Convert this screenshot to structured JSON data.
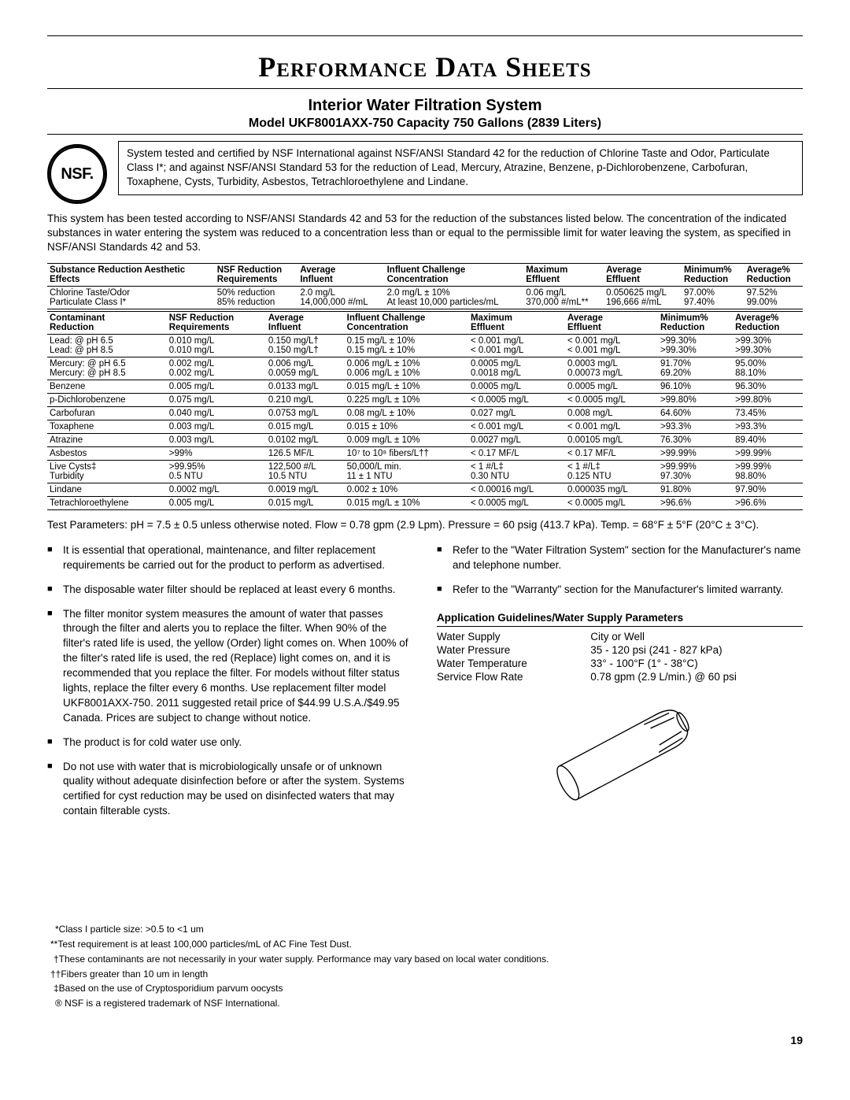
{
  "title": "Performance Data Sheets",
  "subtitle": "Interior Water Filtration System",
  "model_line": "Model UKF8001AXX-750 Capacity 750 Gallons (2839 Liters)",
  "nsf_badge": "NSF.",
  "cert_box": "System tested and certified by NSF International against NSF/ANSI Standard 42 for the reduction of Chlorine Taste and Odor, Particulate Class I*; and against NSF/ANSI Standard 53 for the reduction of Lead, Mercury, Atrazine, Benzene, p-Dichlorobenzene, Carbofuran, Toxaphene, Cysts, Turbidity, Asbestos, Tetrachloroethylene and Lindane.",
  "intro_para": "This system has been tested according to NSF/ANSI Standards 42 and 53 for the reduction of the substances listed below. The concentration of the indicated substances in water entering the system was reduced to a concentration less than or equal to the permissible limit for water leaving the system, as specified in NSF/ANSI Standards 42 and 53.",
  "table1": {
    "headers": [
      "Substance Reduction Aesthetic Effects",
      "NSF Reduction Requirements",
      "Average Influent",
      "Influent Challenge Concentration",
      "Maximum Effluent",
      "Average Effluent",
      "Minimum% Reduction",
      "Average% Reduction"
    ],
    "rows": [
      [
        "Chlorine Taste/Odor\nParticulate Class I*",
        "50% reduction\n85% reduction",
        "2.0 mg/L\n14,000,000 #/mL",
        "2.0 mg/L ± 10%\nAt least 10,000 particles/mL",
        "0.06 mg/L\n370,000 #/mL**",
        "0.050625 mg/L\n196,666 #/mL",
        "97.00%\n97.40%",
        "97.52%\n99.00%"
      ]
    ]
  },
  "table2": {
    "headers": [
      "Contaminant Reduction",
      "NSF Reduction Requirements",
      "Average Influent",
      "Influent Challenge Concentration",
      "Maximum Effluent",
      "Average Effluent",
      "Minimum% Reduction",
      "Average% Reduction"
    ],
    "rows": [
      [
        "Lead: @ pH 6.5\nLead: @ pH 8.5",
        "0.010 mg/L\n0.010 mg/L",
        "0.150 mg/L†\n0.150 mg/L†",
        "0.15 mg/L ± 10%\n0.15 mg/L ± 10%",
        "< 0.001 mg/L\n< 0.001 mg/L",
        "< 0.001 mg/L\n< 0.001 mg/L",
        ">99.30%\n>99.30%",
        ">99.30%\n>99.30%"
      ],
      [
        "Mercury: @ pH 6.5\nMercury: @ pH 8.5",
        "0.002 mg/L\n0.002 mg/L",
        "0.006 mg/L\n0.0059 mg/L",
        "0.006 mg/L ± 10%\n0.006 mg/L ± 10%",
        "0.0005 mg/L\n0.0018 mg/L",
        "0.0003 mg/L\n0.00073 mg/L",
        "91.70%\n69.20%",
        "95.00%\n88.10%"
      ],
      [
        "Benzene",
        "0.005 mg/L",
        "0.0133 mg/L",
        "0.015 mg/L ± 10%",
        "0.0005 mg/L",
        "0.0005 mg/L",
        "96.10%",
        "96.30%"
      ],
      [
        "p-Dichlorobenzene",
        "0.075 mg/L",
        "0.210 mg/L",
        "0.225 mg/L ± 10%",
        "< 0.0005 mg/L",
        "< 0.0005 mg/L",
        ">99.80%",
        ">99.80%"
      ],
      [
        "Carbofuran",
        "0.040 mg/L",
        "0.0753 mg/L",
        "0.08 mg/L ± 10%",
        "0.027 mg/L",
        "0.008 mg/L",
        "64.60%",
        "73.45%"
      ],
      [
        "Toxaphene",
        "0.003 mg/L",
        "0.015 mg/L",
        "0.015 ± 10%",
        "< 0.001 mg/L",
        "< 0.001 mg/L",
        ">93.3%",
        ">93.3%"
      ],
      [
        "Atrazine",
        "0.003 mg/L",
        "0.0102 mg/L",
        "0.009 mg/L ± 10%",
        "0.0027 mg/L",
        "0.00105 mg/L",
        "76.30%",
        "89.40%"
      ],
      [
        "Asbestos",
        ">99%",
        "126.5 MF/L",
        "10⁷ to 10⁸ fibers/L††",
        "< 0.17 MF/L",
        "< 0.17 MF/L",
        ">99.99%",
        ">99.99%"
      ],
      [
        "Live Cysts‡\nTurbidity",
        ">99.95%\n0.5 NTU",
        "122,500 #/L\n10.5 NTU",
        "50,000/L min.\n11 ± 1 NTU",
        "< 1 #/L‡\n0.30 NTU",
        "< 1 #/L‡\n0.125 NTU",
        ">99.99%\n97.30%",
        ">99.99%\n98.80%"
      ],
      [
        "Lindane",
        "0.0002 mg/L",
        "0.0019 mg/L",
        "0.002 ± 10%",
        "< 0.00016 mg/L",
        "0.000035 mg/L",
        "91.80%",
        "97.90%"
      ],
      [
        "Tetrachloroethylene",
        "0.005 mg/L",
        "0.015 mg/L",
        "0.015 mg/L ± 10%",
        "< 0.0005 mg/L",
        "< 0.0005 mg/L",
        ">96.6%",
        ">96.6%"
      ]
    ]
  },
  "test_params": "Test Parameters: pH = 7.5 ± 0.5 unless otherwise noted. Flow = 0.78 gpm (2.9 Lpm). Pressure = 60 psig (413.7 kPa). Temp. = 68°F ± 5°F (20°C ± 3°C).",
  "bullets_left": [
    "It is essential that operational, maintenance, and filter replacement requirements be carried out for the product to perform as advertised.",
    "The disposable water filter should be replaced at least every 6 months.",
    "The filter monitor system measures the amount of water that passes through the filter and alerts you to replace the filter. When 90% of the filter's rated life is used, the yellow (Order) light comes on. When 100% of the filter's rated life is used, the red (Replace) light comes on, and it is recommended that you replace the filter. For models without filter status lights, replace the filter every 6 months. Use replacement filter model UKF8001AXX-750. 2011 suggested retail price of $44.99 U.S.A./$49.95 Canada. Prices are subject to change without notice.",
    "The product is for cold water use only.",
    "Do not use with water that is microbiologically unsafe or of unknown quality without adequate disinfection before or after the system. Systems certified for cyst reduction may be used on disinfected waters that may contain filterable cysts."
  ],
  "bullets_right": [
    "Refer to the \"Water Filtration System\" section for the Manufacturer's name and telephone number.",
    "Refer to the \"Warranty\" section for the Manufacturer's limited warranty."
  ],
  "guidelines": {
    "title": "Application Guidelines/Water Supply Parameters",
    "rows": [
      [
        "Water Supply",
        "City or Well"
      ],
      [
        "Water Pressure",
        "35 - 120 psi (241 - 827 kPa)"
      ],
      [
        "Water Temperature",
        "33° - 100°F (1° - 38°C)"
      ],
      [
        "Service Flow Rate",
        "0.78 gpm (2.9 L/min.) @ 60 psi"
      ]
    ]
  },
  "footnotes": [
    "*Class I particle size: >0.5 to <1 um",
    "**Test requirement is at least 100,000 particles/mL of AC Fine Test Dust.",
    "†These contaminants are not necessarily in your water supply. Performance may vary based on local water conditions.",
    "††Fibers greater than 10 um in length",
    "‡Based on the use of Cryptosporidium parvum oocysts",
    "® NSF is a registered trademark of NSF International."
  ],
  "page_number": "19"
}
